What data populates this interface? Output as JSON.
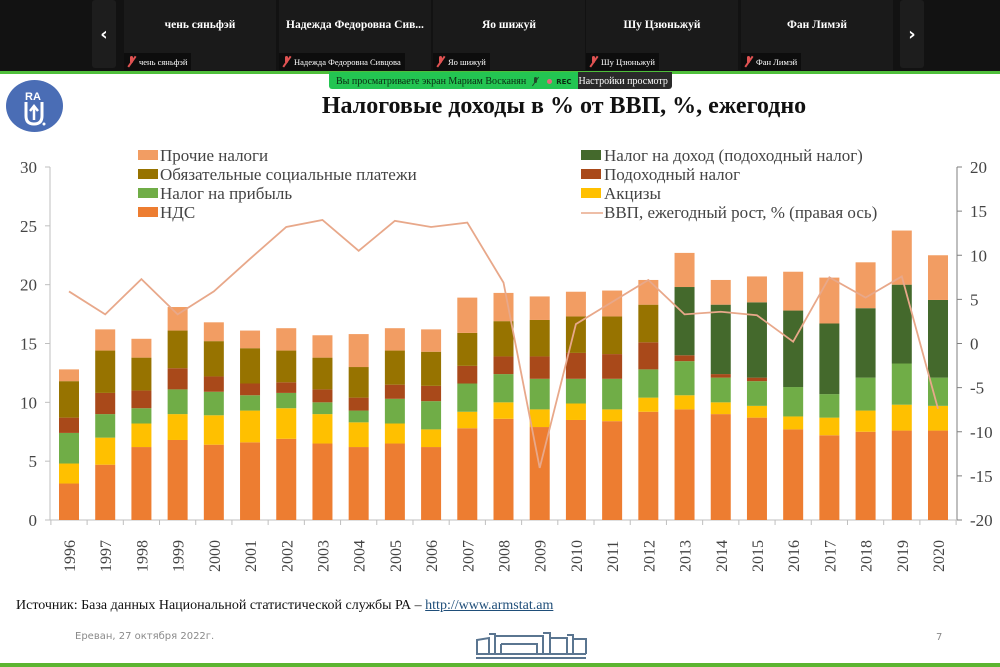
{
  "conference": {
    "prev_label": "‹",
    "next_label": "›",
    "participants": [
      {
        "display_name": "чень сяньфэй",
        "label": "чень сяньфэй",
        "muted": true
      },
      {
        "display_name": "Надежда Федоровна Сив...",
        "label": "Надежда Федоровна Сивцова",
        "muted": true
      },
      {
        "display_name": "Яо шижуй",
        "label": "Яо шижуй",
        "muted": true
      },
      {
        "display_name": "Шу Цзюньжуй",
        "label": "Шу Цзюньжуй",
        "muted": true
      },
      {
        "display_name": "Фан Лимэй",
        "label": "Фан Лимэй",
        "muted": true
      }
    ],
    "share_banner": "Вы просматриваете экран Мариам Восканян",
    "rec_label": "REC",
    "view_settings": "Настройки просмотр"
  },
  "slide": {
    "title": "Налоговые доходы в % от ВВП, %, ежегодно",
    "logo_text": "RA",
    "source_prefix": "Источник: База данных Национальной статистической службы РА – ",
    "source_link": "http://www.armstat.am",
    "footer_date": "Ереван, 27 октября 2022г.",
    "page_number": "7"
  },
  "colors": {
    "nds": "#ed7d31",
    "akcizy": "#ffc000",
    "pribyl": "#70ad47",
    "podoxodny": "#a9491a",
    "social": "#977300",
    "income_tax": "#44692c",
    "prochie": "#f29d63",
    "gdp_line": "#e8a88a",
    "green_accent": "#5cb531",
    "banner_green": "#23c552"
  },
  "chart_data": {
    "type": "bar",
    "stacked": true,
    "title": "Налоговые доходы в % от ВВП, %, ежегодно",
    "xlabel": "",
    "ylabel": "",
    "ylim": [
      0,
      30
    ],
    "yticks": [
      "0",
      "5",
      "10",
      "15",
      "20",
      "25",
      "30"
    ],
    "y2lim": [
      -20,
      20
    ],
    "y2ticks": [
      "-20",
      "-15",
      "-10",
      "-5",
      "0",
      "5",
      "10",
      "15",
      "20"
    ],
    "grid": false,
    "legend_position": "top",
    "categories": [
      "1996",
      "1997",
      "1998",
      "1999",
      "2000",
      "2001",
      "2002",
      "2003",
      "2004",
      "2005",
      "2006",
      "2007",
      "2008",
      "2009",
      "2010",
      "2011",
      "2012",
      "2013",
      "2014",
      "2015",
      "2016",
      "2017",
      "2018",
      "2019",
      "2020"
    ],
    "series": [
      {
        "key": "nds",
        "name": "НДС",
        "values": [
          3.1,
          4.7,
          6.2,
          6.8,
          6.4,
          6.6,
          6.9,
          6.5,
          6.2,
          6.5,
          6.2,
          7.8,
          8.6,
          7.9,
          8.5,
          8.4,
          9.2,
          9.4,
          9.0,
          8.7,
          7.7,
          7.2,
          7.5,
          7.6,
          7.6
        ]
      },
      {
        "key": "akcizy",
        "name": "Акцизы",
        "values": [
          1.7,
          2.3,
          2.0,
          2.2,
          2.5,
          2.7,
          2.6,
          2.5,
          2.1,
          1.7,
          1.5,
          1.4,
          1.4,
          1.5,
          1.4,
          1.0,
          1.2,
          1.2,
          1.0,
          1.0,
          1.1,
          1.5,
          1.8,
          2.2,
          2.1
        ]
      },
      {
        "key": "pribyl",
        "name": "Налог на прибыль",
        "values": [
          2.6,
          2.0,
          1.3,
          2.1,
          2.0,
          1.3,
          1.3,
          1.0,
          1.0,
          2.1,
          2.4,
          2.4,
          2.4,
          2.6,
          2.1,
          2.6,
          2.4,
          2.9,
          2.1,
          2.1,
          2.5,
          2.0,
          2.8,
          3.5,
          2.4
        ]
      },
      {
        "key": "podoxodny",
        "name": "Подоходный налог",
        "values": [
          1.3,
          1.8,
          1.5,
          1.8,
          1.3,
          1.0,
          0.9,
          1.1,
          1.1,
          1.2,
          1.3,
          1.5,
          1.5,
          1.9,
          2.2,
          2.1,
          2.3,
          0.5,
          0.3,
          0.3,
          0,
          0,
          0,
          0,
          0
        ]
      },
      {
        "key": "social",
        "name": "Обязательные социальные платежи",
        "values": [
          3.1,
          3.6,
          2.8,
          3.2,
          3.0,
          3.0,
          2.7,
          2.7,
          2.6,
          2.9,
          2.9,
          2.8,
          3.0,
          3.1,
          3.1,
          3.2,
          3.2,
          0,
          0,
          0,
          0,
          0,
          0,
          0,
          0
        ]
      },
      {
        "key": "income_tax",
        "name": "Налог на доход (подоходный налог)",
        "values": [
          0,
          0,
          0,
          0,
          0,
          0,
          0,
          0,
          0,
          0,
          0,
          0,
          0,
          0,
          0,
          0,
          0,
          5.8,
          5.9,
          6.4,
          6.5,
          6.0,
          5.9,
          6.7,
          6.6
        ]
      },
      {
        "key": "prochie",
        "name": "Прочие налоги",
        "values": [
          1.0,
          1.8,
          1.6,
          2.0,
          1.6,
          1.5,
          1.9,
          1.9,
          2.8,
          1.9,
          1.9,
          3.0,
          2.4,
          2.0,
          2.1,
          2.2,
          2.1,
          2.9,
          2.1,
          2.2,
          3.3,
          3.9,
          3.9,
          4.6,
          3.8
        ]
      }
    ],
    "line": {
      "name": "ВВП, ежегодный рост, % (правая ось)",
      "axis": "right",
      "values": [
        5.9,
        3.3,
        7.3,
        3.3,
        5.9,
        9.6,
        13.2,
        14.0,
        10.5,
        13.9,
        13.2,
        13.7,
        6.9,
        -14.1,
        2.2,
        4.7,
        7.2,
        3.3,
        3.6,
        3.2,
        0.2,
        7.5,
        5.2,
        7.6,
        -7.4
      ]
    },
    "legend_left": [
      "Прочие налоги",
      "Обязательные социальные платежи",
      "Налог на прибыль",
      "НДС"
    ],
    "legend_right": [
      "Налог на доход (подоходный налог)",
      "Подоходный налог",
      "Акцизы",
      "ВВП, ежегодный рост, % (правая ось)"
    ]
  }
}
